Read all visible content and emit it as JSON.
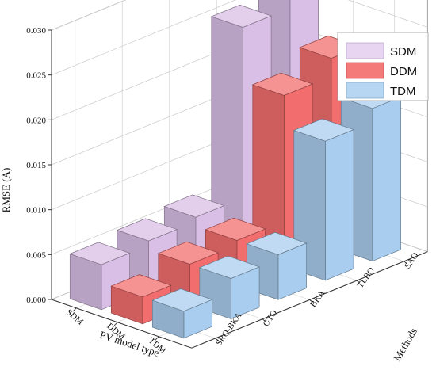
{
  "chart_data": {
    "type": "bar",
    "subtype": "3d-grouped-bar",
    "title": "",
    "zlabel": "RMSE (A)",
    "xlabel": "PV model type",
    "ylabel": "Methods",
    "zlim": [
      0,
      0.03
    ],
    "z_ticks": [
      "0.000",
      "0.005",
      "0.010",
      "0.015",
      "0.020",
      "0.025",
      "0.030"
    ],
    "grid": true,
    "legend_position": "top-right",
    "model_types": [
      "SDM",
      "DDM",
      "TDM"
    ],
    "methods": [
      "SRQ-BKA",
      "GTO",
      "BKA",
      "TLBO",
      "SAO"
    ],
    "series": [
      {
        "name": "SDM",
        "color": "#d9bfe6",
        "values": [
          0.005,
          0.0055,
          0.006,
          0.025,
          0.029
        ]
      },
      {
        "name": "DDM",
        "color": "#f26d6d",
        "values": [
          0.003,
          0.0045,
          0.005,
          0.019,
          0.021
        ]
      },
      {
        "name": "TDM",
        "color": "#a9cdee",
        "values": [
          0.003,
          0.0045,
          0.005,
          0.0155,
          0.017
        ]
      }
    ]
  }
}
